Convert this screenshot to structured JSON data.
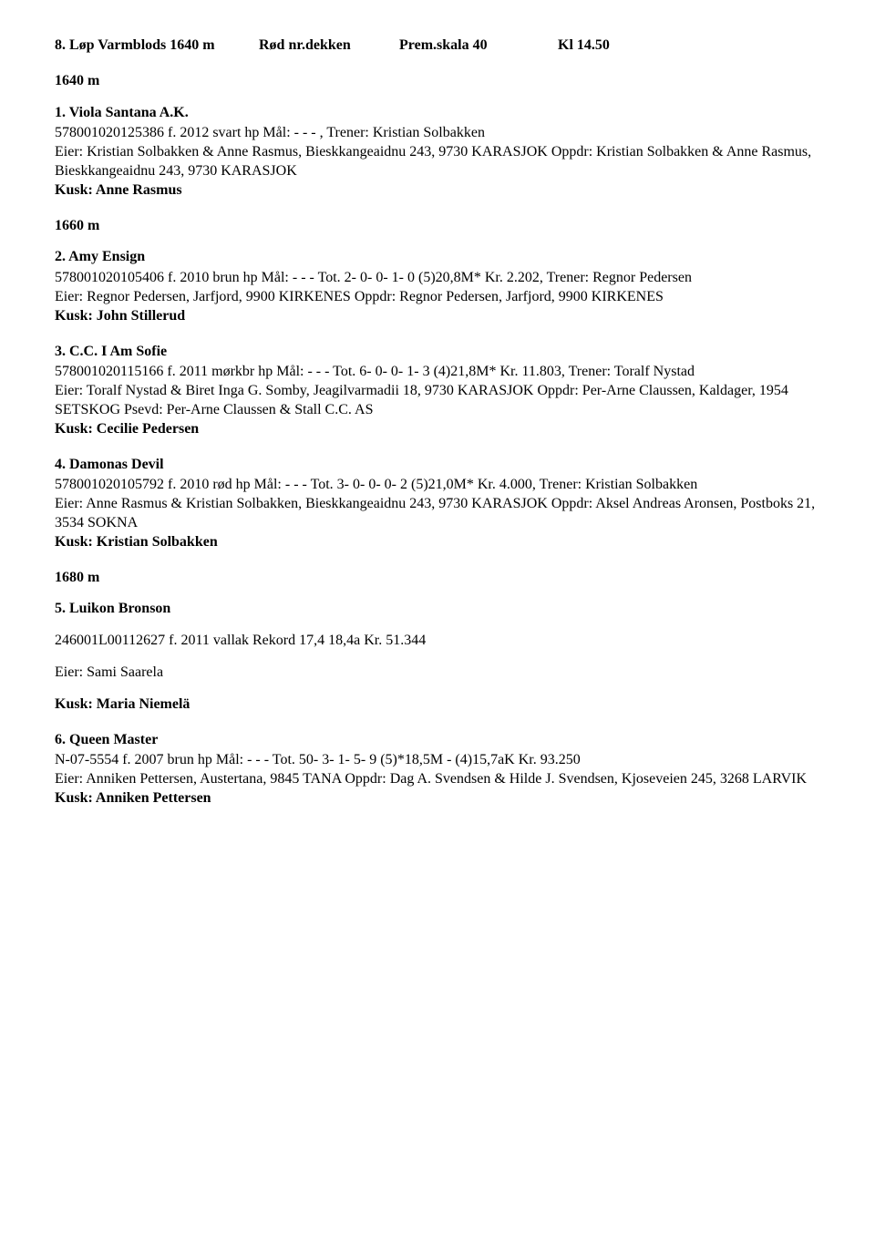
{
  "header": {
    "race_title": "8. Løp Varmblods 1640 m",
    "dekken": "Rød nr.dekken",
    "prem": "Prem.skala 40",
    "time": "Kl 14.50"
  },
  "d1640": "1640 m",
  "e1": {
    "title": "1. Viola Santana A.K.",
    "body1": "578001020125386 f. 2012 svart hp Mål: - - - , Trener: Kristian Solbakken",
    "body2": "Eier: Kristian Solbakken & Anne Rasmus, Bieskkangeaidnu 243, 9730 KARASJOK Oppdr: Kristian Solbakken & Anne Rasmus, Bieskkangeaidnu 243, 9730 KARASJOK",
    "kusk": "Kusk: Anne Rasmus"
  },
  "d1660": "1660 m",
  "e2": {
    "title": "2. Amy Ensign",
    "body1": "578001020105406 f. 2010 brun hp Mål: - - - Tot. 2- 0- 0- 1- 0 (5)20,8M* Kr. 2.202, Trener: Regnor Pedersen",
    "body2": "Eier: Regnor Pedersen, Jarfjord, 9900 KIRKENES Oppdr: Regnor Pedersen, Jarfjord, 9900 KIRKENES",
    "kusk": "Kusk: John Stillerud"
  },
  "e3": {
    "title": "3. C.C. I Am Sofie",
    "body1": "578001020115166 f. 2011 mørkbr hp Mål: - - - Tot. 6- 0- 0- 1- 3 (4)21,8M* Kr. 11.803, Trener: Toralf Nystad",
    "body2": "Eier: Toralf Nystad & Biret Inga G. Somby, Jeagilvarmadii 18, 9730 KARASJOK Oppdr: Per-Arne Claussen, Kaldager, 1954 SETSKOG Psevd: Per-Arne Claussen & Stall C.C. AS",
    "kusk": "Kusk: Cecilie Pedersen"
  },
  "e4": {
    "title": "4. Damonas Devil",
    "body1": "578001020105792 f. 2010 rød hp Mål: - - - Tot. 3- 0- 0- 0- 2 (5)21,0M* Kr. 4.000, Trener: Kristian Solbakken",
    "body2": "Eier: Anne Rasmus & Kristian Solbakken, Bieskkangeaidnu 243, 9730 KARASJOK Oppdr: Aksel Andreas Aronsen, Postboks 21, 3534 SOKNA",
    "kusk": "Kusk: Kristian Solbakken"
  },
  "d1680": "1680 m",
  "e5": {
    "title": "5. Luikon Bronson",
    "body1": "246001L00112627   f.  2011   vallak   Rekord 17,4  18,4a   Kr. 51.344",
    "eier": "Eier: Sami Saarela",
    "kusk": "Kusk: Maria Niemelä"
  },
  "e6": {
    "title": "6. Queen Master",
    "body1": "N-07-5554 f. 2007 brun hp Mål: - - - Tot. 50- 3- 1- 5- 9 (5)*18,5M - (4)15,7aK Kr. 93.250",
    "body2": "Eier: Anniken Pettersen, Austertana, 9845 TANA Oppdr: Dag A. Svendsen & Hilde J. Svendsen, Kjoseveien 245, 3268 LARVIK",
    "kusk": "Kusk: Anniken Pettersen"
  }
}
